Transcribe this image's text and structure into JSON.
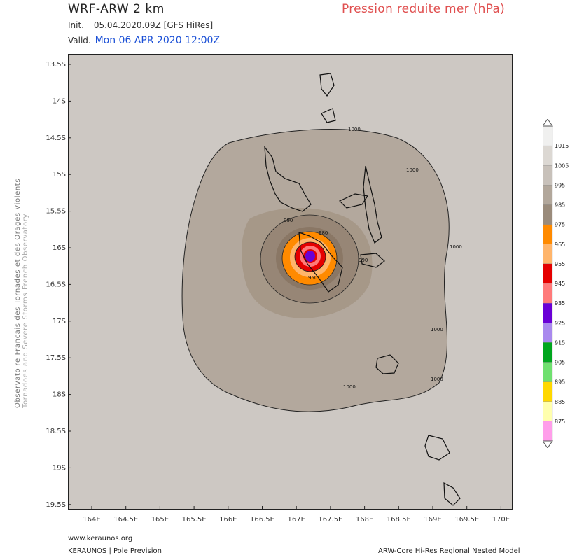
{
  "header": {
    "model": "WRF-ARW 2 km",
    "field": "Pression reduite mer (hPa)",
    "init_label": "Init.",
    "init_value": "05.04.2020.09Z [GFS HiRes]",
    "valid_label": "Valid.",
    "valid_value": "Mon 06 APR 2020 12:00Z"
  },
  "side_label": {
    "line1": "Observatoire Francais des Tornades et des Orages Violents",
    "line2": "Tornadoes and Severe Storms French Observatory"
  },
  "map": {
    "lat_ticks": [
      "13.5S",
      "14S",
      "14.5S",
      "15S",
      "15.5S",
      "16S",
      "16.5S",
      "17S",
      "17.5S",
      "18S",
      "18.5S",
      "19S",
      "19.5S"
    ],
    "lon_ticks": [
      "164E",
      "164.5E",
      "165E",
      "165.5E",
      "166E",
      "166.5E",
      "167E",
      "167.5E",
      "168E",
      "168.5E",
      "169E",
      "169.5E",
      "170E"
    ],
    "contour_labels": [
      "1000",
      "1000",
      "990",
      "980",
      "990",
      "950",
      "1000",
      "1000",
      "1000",
      "1000"
    ]
  },
  "legend": {
    "labels": [
      "1015",
      "1005",
      "995",
      "985",
      "975",
      "965",
      "955",
      "945",
      "935",
      "925",
      "915",
      "905",
      "895",
      "885",
      "875"
    ],
    "colors": [
      "#f0f0ef",
      "#dcd8d3",
      "#c8c1ba",
      "#b2a79b",
      "#9a8b7b",
      "#ff8a00",
      "#ffb56b",
      "#e50000",
      "#ff7a7a",
      "#6a00d6",
      "#a989ee",
      "#00a61e",
      "#6fe06f",
      "#ffd800",
      "#ffffae",
      "#ff9eea"
    ]
  },
  "footer": {
    "website": "www.keraunos.org",
    "brand": "KERAUNOS | Pole Prevision",
    "model_note": "ARW-Core Hi-Res Regional Nested Model"
  },
  "colors": {
    "title_red": "#e05050",
    "valid_blue": "#1a4fd6",
    "side_gray": "#777777",
    "side_light": "#aaaaaa"
  }
}
